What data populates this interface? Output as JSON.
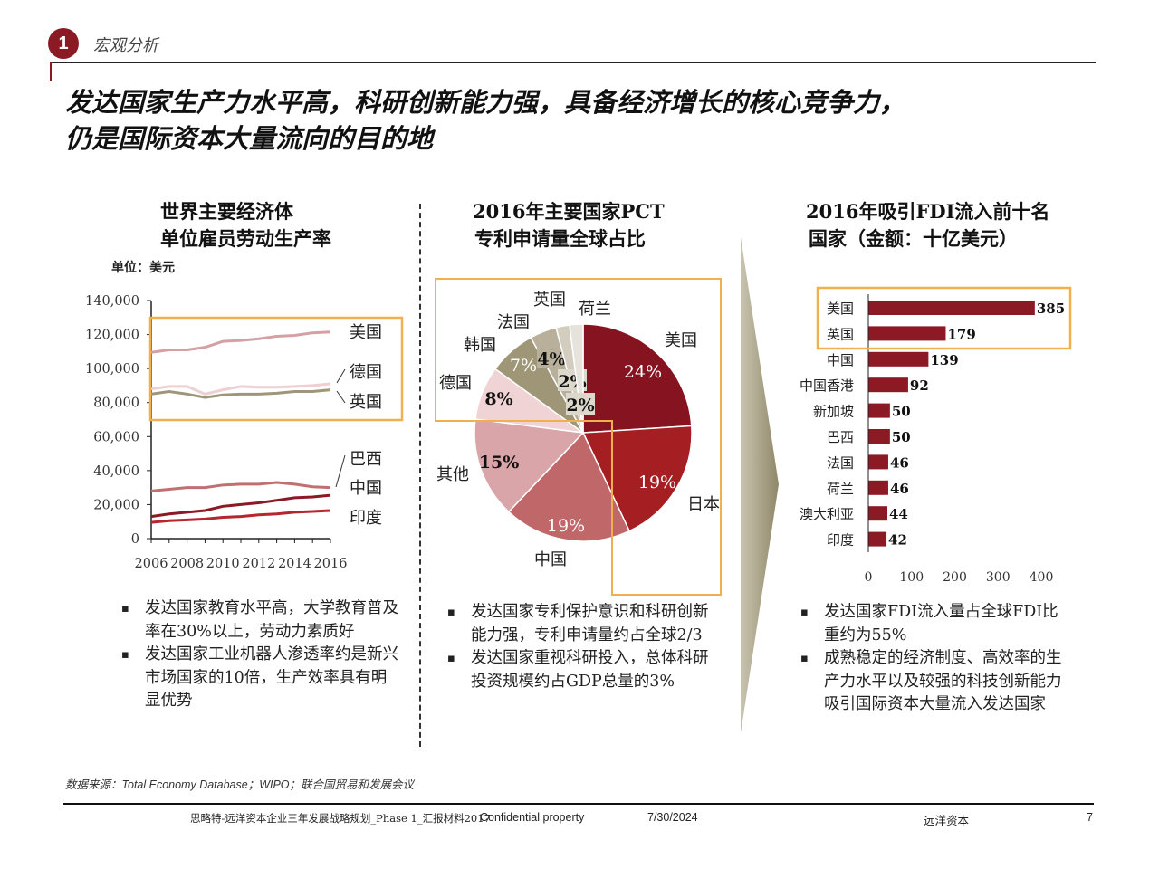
{
  "header": {
    "section_number": "1",
    "section": "宏观分析",
    "title_line1": "发达国家生产力水平高，科研创新能力强，具备经济增长的核心竞争力，",
    "title_line2": "仍是国际资本大量流向的目的地"
  },
  "colors": {
    "brand": "#8b1a25",
    "highlight_box": "#f0b050",
    "arrow": "#9e9676"
  },
  "chart_data": [
    {
      "type": "line",
      "title_line1": "世界主要经济体",
      "title_line2": "单位雇员劳动生产率",
      "unit": "单位：美元",
      "x": [
        2006,
        2007,
        2008,
        2009,
        2010,
        2011,
        2012,
        2013,
        2014,
        2015,
        2016
      ],
      "x_ticks": [
        "2006",
        "2008",
        "2010",
        "2012",
        "2014",
        "2016"
      ],
      "y_ticks": [
        "0",
        "20,000",
        "40,000",
        "60,000",
        "80,000",
        "100,000",
        "120,000",
        "140,000"
      ],
      "ylim": [
        0,
        140000
      ],
      "series": [
        {
          "name": "美国",
          "color": "#d4a0a4",
          "values": [
            109500,
            111000,
            111000,
            112500,
            116000,
            116500,
            117500,
            119000,
            119500,
            121000,
            121500
          ]
        },
        {
          "name": "德国",
          "color": "#efcfd2",
          "values": [
            88000,
            89500,
            89500,
            85000,
            87500,
            89500,
            89000,
            89000,
            89500,
            90000,
            91000
          ]
        },
        {
          "name": "英国",
          "color": "#9e9676",
          "values": [
            85000,
            86500,
            85000,
            83000,
            84500,
            85000,
            85000,
            85500,
            86500,
            86500,
            87500
          ]
        },
        {
          "name": "巴西",
          "color": "#c07070",
          "values": [
            28000,
            29000,
            30000,
            30000,
            31500,
            32000,
            32000,
            33000,
            32000,
            30500,
            30000
          ]
        },
        {
          "name": "中国",
          "color": "#8b1a25",
          "values": [
            13000,
            14500,
            15500,
            16500,
            19000,
            20000,
            21000,
            22500,
            24000,
            24500,
            25500
          ]
        },
        {
          "name": "印度",
          "color": "#b5262d",
          "values": [
            9500,
            10500,
            11000,
            11500,
            12500,
            13000,
            14000,
            14500,
            15500,
            16000,
            16500
          ]
        }
      ]
    },
    {
      "type": "pie",
      "title_line1": "2016年主要国家PCT",
      "title_line2": "专利申请量全球占比",
      "slices": [
        {
          "label": "美国",
          "value": 24,
          "text": "24%",
          "color": "#861420"
        },
        {
          "label": "日本",
          "value": 19,
          "text": "19%",
          "color": "#a51f22"
        },
        {
          "label": "中国",
          "value": 19,
          "text": "19%",
          "color": "#c0676a"
        },
        {
          "label": "其他",
          "value": 15,
          "text": "15%",
          "color": "#d9a5a8"
        },
        {
          "label": "德国",
          "value": 8,
          "text": "8%",
          "color": "#efd3d5"
        },
        {
          "label": "韩国",
          "value": 7,
          "text": "7%",
          "color": "#9e9676"
        },
        {
          "label": "法国",
          "value": 4,
          "text": "4%",
          "color": "#b8b09a"
        },
        {
          "label": "英国",
          "value": 2,
          "text": "2%",
          "color": "#d2cdbf"
        },
        {
          "label": "荷兰",
          "value": 2,
          "text": "2%",
          "color": "#e6e3dc"
        }
      ]
    },
    {
      "type": "bar",
      "orientation": "horizontal",
      "title_line1": "2016年吸引FDI流入前十名",
      "title_line2": "国家（金额：十亿美元）",
      "categories": [
        "美国",
        "英国",
        "中国",
        "中国香港",
        "新加坡",
        "巴西",
        "法国",
        "荷兰",
        "澳大利亚",
        "印度"
      ],
      "values": [
        385,
        179,
        139,
        92,
        50,
        50,
        46,
        46,
        44,
        42
      ],
      "x_ticks": [
        "0",
        "100",
        "200",
        "300",
        "400"
      ],
      "xlim": [
        0,
        400
      ],
      "color": "#8b1a25"
    }
  ],
  "bullets": {
    "left": [
      "发达国家教育水平高，大学教育普及率在30%以上，劳动力素质好",
      "发达国家工业机器人渗透率约是新兴市场国家的10倍，生产效率具有明显优势"
    ],
    "middle": [
      "发达国家专利保护意识和科研创新能力强，专利申请量约占全球2/3",
      "发达国家重视科研投入，总体科研投资规模约占GDP总量的3%"
    ],
    "right": [
      "发达国家FDI流入量占全球FDI比重约为55%",
      "成熟稳定的经济制度、高效率的生产力水平以及较强的科技创新能力吸引国际资本大量流入发达国家"
    ]
  },
  "source": "数据来源：Total Economy Database；WIPO；联合国贸易和发展会议",
  "footer": {
    "doc": "思略特-远洋资本企业三年发展战略规划_Phase 1_汇报材料2017",
    "confidential": "Confidential property",
    "date": "7/30/2024",
    "company": "远洋资本",
    "page": "7"
  }
}
